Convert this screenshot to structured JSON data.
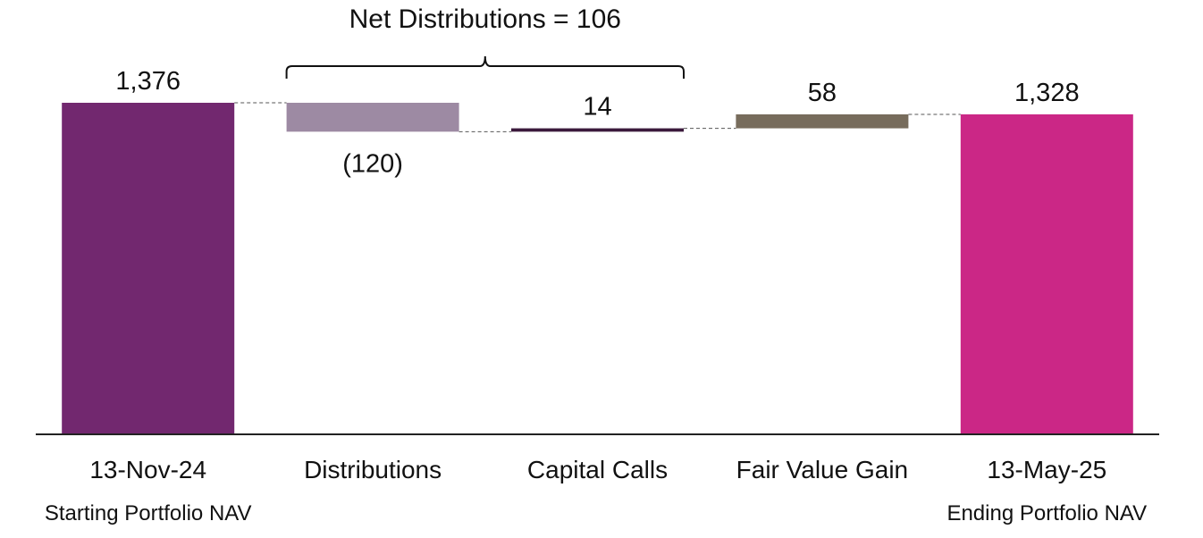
{
  "chart_data": {
    "type": "waterfall",
    "title": "",
    "xlabel": "",
    "ylabel": "",
    "ylim": [
      0,
      1376
    ],
    "grid": false,
    "legend": "none",
    "categories": [
      "13-Nov-24",
      "Distributions",
      "Capital Calls",
      "Fair Value Gain",
      "13-May-25"
    ],
    "sublabels": [
      "Starting Portfolio NAV",
      "",
      "",
      "",
      "Ending Portfolio NAV"
    ],
    "values": [
      1376,
      -120,
      14,
      58,
      1328
    ],
    "bar_kind": [
      "total",
      "delta",
      "delta",
      "delta",
      "total"
    ],
    "value_labels": [
      "1,376",
      "(120)",
      "14",
      "58",
      "1,328"
    ],
    "colors": [
      "#72286f",
      "#9d8aa3",
      "#3b1a3c",
      "#776c5c",
      "#cb2786"
    ],
    "annotation": {
      "text": "Net Distributions = 106",
      "spans": [
        "Distributions",
        "Capital Calls"
      ]
    }
  }
}
